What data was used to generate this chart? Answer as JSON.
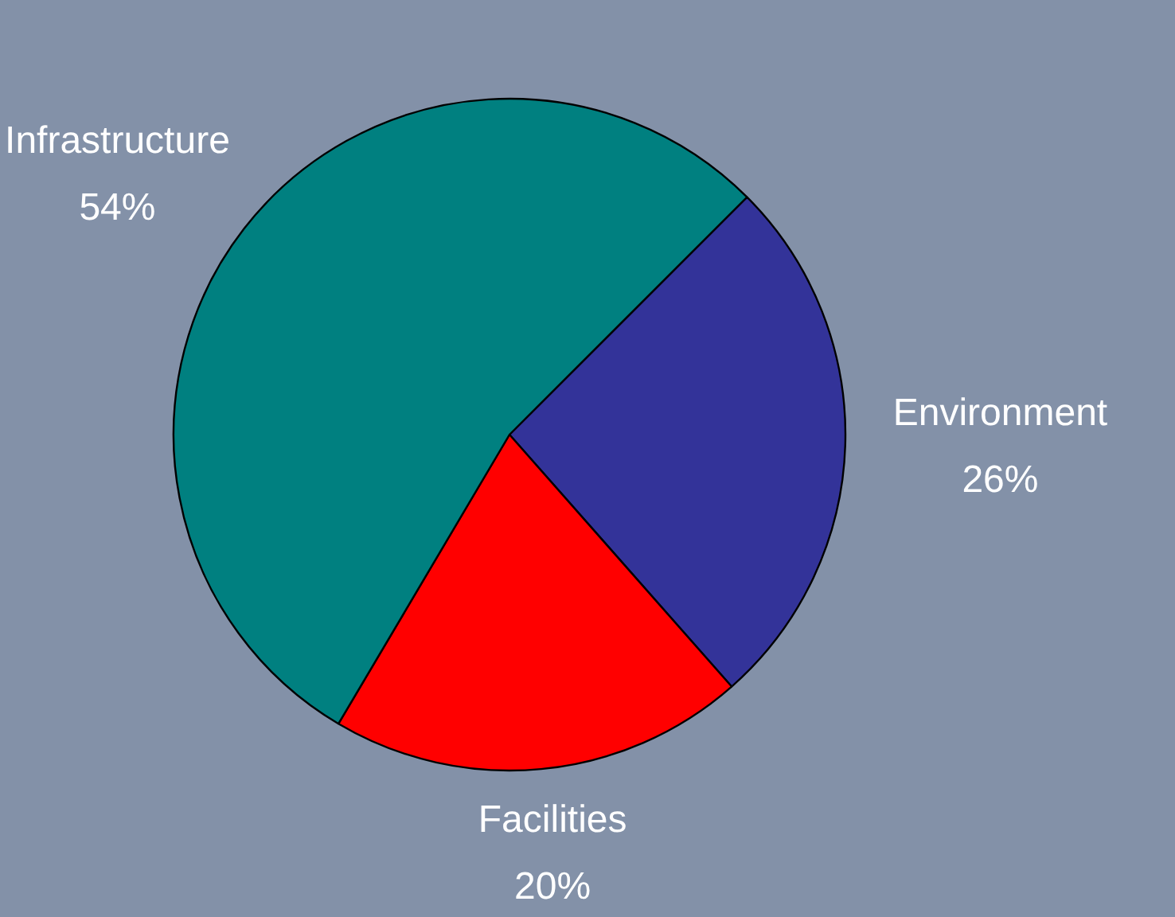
{
  "chart_data": {
    "type": "pie",
    "categories": [
      "Environment",
      "Facilities",
      "Infrastructure"
    ],
    "values": [
      26,
      20,
      54
    ],
    "value_labels": [
      "26%",
      "20%",
      "54%"
    ],
    "colors": [
      "#333399",
      "#ff0000",
      "#008080"
    ]
  }
}
